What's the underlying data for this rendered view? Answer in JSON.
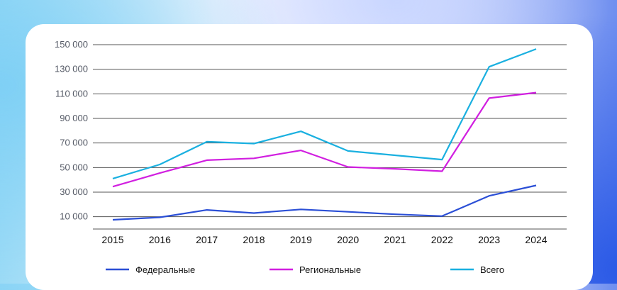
{
  "colors": {
    "federal": "#2b4fd6",
    "regional": "#d11fe0",
    "total": "#1ab0e0",
    "grid": "#555555"
  },
  "chart_data": {
    "type": "line",
    "title": "",
    "xlabel": "",
    "ylabel": "",
    "x": [
      "2015",
      "2016",
      "2017",
      "2018",
      "2019",
      "2020",
      "2021",
      "2022",
      "2023",
      "2024"
    ],
    "y_ticks": [
      {
        "value": 10000,
        "label": "10 000"
      },
      {
        "value": 30000,
        "label": "30 000"
      },
      {
        "value": 50000,
        "label": "50 000"
      },
      {
        "value": 70000,
        "label": "70 000"
      },
      {
        "value": 90000,
        "label": "90 000"
      },
      {
        "value": 110000,
        "label": "110 000"
      },
      {
        "value": 130000,
        "label": "130 000"
      },
      {
        "value": 150000,
        "label": "150 000"
      }
    ],
    "ylim": [
      0,
      150000
    ],
    "legend_position": "bottom",
    "series": [
      {
        "name": "Федеральные",
        "key": "federal",
        "values": [
          7500,
          9500,
          15500,
          13000,
          16000,
          14000,
          12000,
          10500,
          27000,
          35500
        ]
      },
      {
        "name": "Региональные",
        "key": "regional",
        "values": [
          34500,
          45500,
          56000,
          57500,
          64000,
          50500,
          49000,
          47000,
          106500,
          111000
        ]
      },
      {
        "name": "Всего",
        "key": "total",
        "values": [
          41000,
          52500,
          71000,
          69500,
          79500,
          63500,
          60000,
          56500,
          132000,
          146500
        ]
      }
    ]
  }
}
